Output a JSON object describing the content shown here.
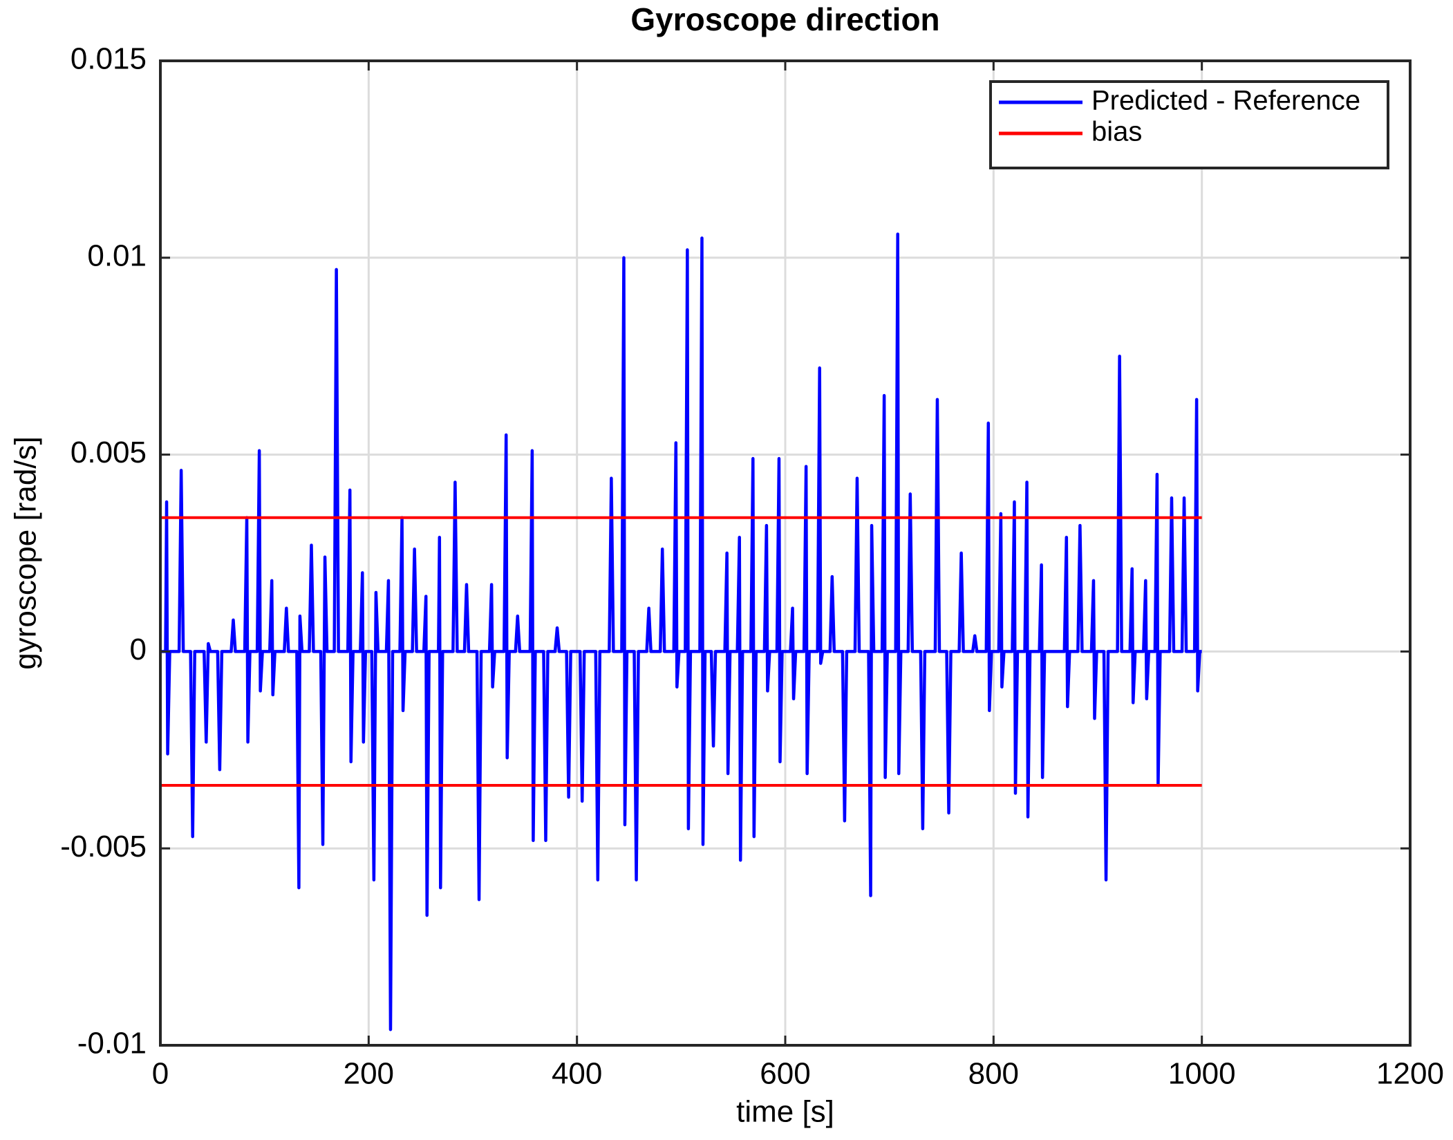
{
  "chart_data": {
    "type": "line",
    "title": "Gyroscope  direction",
    "x_label": "time [s]",
    "y_label": "gyroscope [rad/s]",
    "xlim": [
      0,
      1200
    ],
    "xticks": [
      0,
      200,
      400,
      600,
      800,
      1000,
      1200
    ],
    "ylim": [
      -0.01,
      0.015
    ],
    "yticks": [
      -0.01,
      -0.005,
      0,
      0.005,
      0.01,
      0.015
    ],
    "grid": true,
    "legend": "top-right",
    "series": [
      {
        "name": "Predicted - Reference",
        "color": "#0000ff",
        "x": [
          0,
          5,
          6,
          7,
          9,
          18,
          20,
          22,
          29,
          31,
          33,
          42,
          44,
          46,
          48,
          55,
          57,
          59,
          68,
          70,
          72,
          81,
          83,
          84,
          86,
          93,
          95,
          96,
          98,
          105,
          107,
          108,
          110,
          119,
          121,
          123,
          131,
          133,
          134,
          136,
          143,
          145,
          147,
          154,
          156,
          158,
          160,
          167,
          169,
          171,
          180,
          182,
          183,
          185,
          192,
          194,
          195,
          197,
          203,
          205,
          207,
          209,
          217,
          219,
          221,
          223,
          230,
          232,
          233,
          235,
          242,
          244,
          246,
          253,
          255,
          256,
          258,
          267,
          268,
          269,
          271,
          281,
          283,
          285,
          292,
          294,
          296,
          304,
          306,
          308,
          316,
          318,
          319,
          321,
          330,
          332,
          333,
          335,
          341,
          343,
          345,
          355,
          357,
          358,
          360,
          368,
          370,
          372,
          379,
          381,
          383,
          390,
          392,
          394,
          403,
          405,
          407,
          418,
          420,
          422,
          431,
          433,
          435,
          443,
          445,
          446,
          448,
          455,
          457,
          459,
          467,
          469,
          471,
          480,
          482,
          484,
          493,
          495,
          496,
          498,
          504,
          506,
          507,
          509,
          518,
          520,
          521,
          523,
          529,
          531,
          533,
          542,
          544,
          545,
          547,
          554,
          556,
          557,
          559,
          567,
          569,
          570,
          572,
          580,
          582,
          583,
          585,
          592,
          594,
          595,
          597,
          605,
          607,
          608,
          610,
          618,
          620,
          621,
          623,
          631,
          633,
          634,
          636,
          643,
          645,
          647,
          655,
          657,
          659,
          667,
          669,
          671,
          680,
          682,
          683,
          685,
          693,
          695,
          696,
          698,
          706,
          708,
          709,
          711,
          718,
          720,
          722,
          730,
          732,
          734,
          744,
          746,
          748,
          755,
          757,
          759,
          767,
          769,
          771,
          780,
          782,
          784,
          793,
          795,
          796,
          798,
          805,
          807,
          808,
          810,
          818,
          820,
          821,
          823,
          830,
          832,
          833,
          835,
          844,
          846,
          847,
          849,
          868,
          870,
          871,
          873,
          881,
          883,
          885,
          894,
          896,
          897,
          899,
          906,
          908,
          910,
          919,
          921,
          923,
          931,
          933,
          934,
          936,
          944,
          946,
          947,
          949,
          955,
          957,
          958,
          960,
          969,
          971,
          973,
          981,
          983,
          985,
          993,
          995,
          996,
          998,
          1000
        ],
        "values": [
          0,
          0,
          0.0038,
          -0.0026,
          0,
          0,
          0.0046,
          0,
          0,
          -0.0047,
          0,
          0,
          -0.0023,
          0.0002,
          0,
          0,
          -0.003,
          0,
          0,
          0.0008,
          0,
          0,
          0.0034,
          -0.0023,
          0,
          0,
          0.0051,
          -0.001,
          0,
          0,
          0.0018,
          -0.0011,
          0,
          0,
          0.0011,
          0,
          0,
          -0.006,
          0.0009,
          0,
          0,
          0.0027,
          0,
          0,
          -0.0049,
          0.0024,
          0,
          0,
          0.0097,
          0,
          0,
          0.0041,
          -0.0028,
          0,
          0,
          0.002,
          -0.0023,
          0,
          0,
          -0.0058,
          0.0015,
          0,
          0,
          0.0018,
          -0.0096,
          0,
          0,
          0.0034,
          -0.0015,
          0,
          0,
          0.0026,
          0,
          0,
          0.0014,
          -0.0067,
          0,
          0,
          0.0029,
          -0.006,
          0,
          0,
          0.0043,
          0,
          0,
          0.0017,
          0,
          0,
          -0.0063,
          0,
          0,
          0.0017,
          -0.0009,
          0,
          0,
          0.0055,
          -0.0027,
          0,
          0,
          0.0009,
          0,
          0,
          0.0051,
          -0.0048,
          0,
          0,
          -0.0048,
          0,
          0,
          0.0006,
          0,
          0,
          -0.0037,
          0,
          0,
          -0.0038,
          0,
          0,
          -0.0058,
          0,
          0,
          0.0044,
          0,
          0,
          0.01,
          -0.0044,
          0,
          0,
          -0.0058,
          0,
          0,
          0.0011,
          0,
          0,
          0.0026,
          0,
          0,
          0.0053,
          -0.0009,
          0,
          0,
          0.0102,
          -0.0045,
          0,
          0,
          0.0105,
          -0.0049,
          0,
          0,
          -0.0024,
          0,
          0,
          0.0025,
          -0.0031,
          0,
          0,
          0.0029,
          -0.0053,
          0,
          0,
          0.0049,
          -0.0047,
          0,
          0,
          0.0032,
          -0.001,
          0,
          0,
          0.0049,
          -0.0028,
          0,
          0,
          0.0011,
          -0.0012,
          0,
          0,
          0.0047,
          -0.0031,
          0,
          0,
          0.0072,
          -0.0003,
          0,
          0,
          0.0019,
          0,
          0,
          -0.0043,
          0,
          0,
          0.0044,
          0,
          0,
          -0.0062,
          0.0032,
          0,
          0,
          0.0065,
          -0.0032,
          0,
          0,
          0.0106,
          -0.0031,
          0,
          0,
          0.004,
          0,
          0,
          -0.0045,
          0,
          0,
          0.0064,
          0,
          0,
          -0.0041,
          0,
          0,
          0.0025,
          0,
          0,
          0.0004,
          0,
          0,
          0.0058,
          -0.0015,
          0,
          0,
          0.0035,
          -0.0009,
          0,
          0,
          0.0038,
          -0.0036,
          0,
          0,
          0.0043,
          -0.0042,
          0,
          0,
          0.0022,
          -0.0032,
          0,
          0,
          0.0029,
          -0.0014,
          0,
          0,
          0.0032,
          0,
          0,
          0.0018,
          -0.0017,
          0,
          0,
          -0.0058,
          0,
          0,
          0.0075,
          0,
          0,
          0.0021,
          -0.0013,
          0,
          0,
          0.0018,
          -0.0012,
          0,
          0,
          0.0045,
          -0.0034,
          0,
          0,
          0.0039,
          0,
          0,
          0.0039,
          0,
          0,
          0.0064,
          -0.001,
          0,
          0
        ]
      },
      {
        "name": "bias",
        "color": "#ff0000",
        "x": [
          0,
          1000,
          null,
          0,
          1000
        ],
        "values": [
          0.0034,
          0.0034,
          null,
          -0.0034,
          -0.0034
        ]
      }
    ]
  }
}
